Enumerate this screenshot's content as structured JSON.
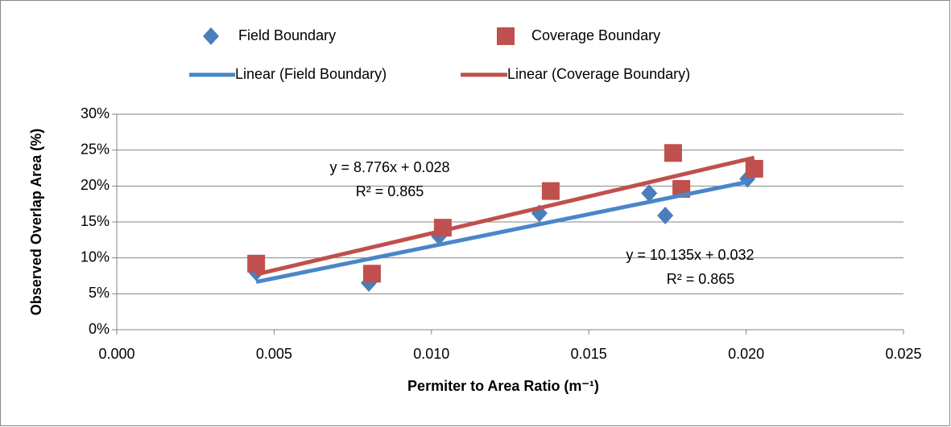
{
  "chart_data": {
    "type": "scatter",
    "xlabel": "Permiter to Area Ratio (m⁻¹)",
    "ylabel": "Observed Overlap Area (%)",
    "xlim": [
      0,
      0.025
    ],
    "ylim": [
      0,
      30
    ],
    "xticks": [
      {
        "value": 0,
        "label": "0.000"
      },
      {
        "value": 0.005,
        "label": "0.005"
      },
      {
        "value": 0.01,
        "label": "0.010"
      },
      {
        "value": 0.015,
        "label": "0.015"
      },
      {
        "value": 0.02,
        "label": "0.020"
      },
      {
        "value": 0.025,
        "label": "0.025"
      }
    ],
    "yticks": [
      {
        "value": 0,
        "label": "0%"
      },
      {
        "value": 5,
        "label": "5%"
      },
      {
        "value": 10,
        "label": "10%"
      },
      {
        "value": 15,
        "label": "15%"
      },
      {
        "value": 20,
        "label": "20%"
      },
      {
        "value": 25,
        "label": "25%"
      },
      {
        "value": 30,
        "label": "30%"
      }
    ],
    "grid": true,
    "series": [
      {
        "name": "Field Boundary",
        "marker": "diamond",
        "color": "#4a7ebb",
        "trendline_name": "Linear (Field Boundary)",
        "trendline_color": "#4a86c8",
        "x": [
          0.00443,
          0.00801,
          0.01024,
          0.01343,
          0.01692,
          0.01743,
          0.02004
        ],
        "values": [
          8.0,
          6.5,
          13.0,
          16.2,
          19.0,
          15.9,
          21.0
        ]
      },
      {
        "name": "Coverage Boundary",
        "marker": "square",
        "color": "#c0504d",
        "trendline_name": "Linear (Coverage Boundary)",
        "trendline_color": "#c0504d",
        "x": [
          0.00443,
          0.00811,
          0.01036,
          0.01379,
          0.01768,
          0.01794,
          0.02026
        ],
        "values": [
          9.2,
          7.8,
          14.2,
          19.3,
          24.6,
          19.6,
          22.4
        ]
      }
    ],
    "annotations": [
      "y = 8.776x + 0.028",
      "R² = 0.865",
      "y = 10.135x + 0.032",
      "R² = 0.865"
    ]
  }
}
